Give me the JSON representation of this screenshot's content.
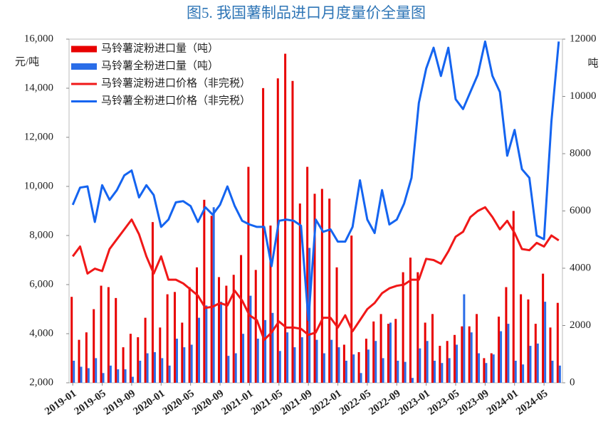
{
  "chart_data": {
    "type": "bar-line",
    "title": "图5. 我国薯制品进口月度量价全量图",
    "ylabel": "元/吨",
    "y2label": "吨",
    "categories": [
      "2019-01",
      null,
      null,
      null,
      "2019-05",
      null,
      null,
      null,
      "2019-09",
      null,
      null,
      null,
      "2020-01",
      null,
      null,
      null,
      "2020-05",
      null,
      null,
      null,
      "2020-09",
      null,
      null,
      null,
      "2021-01",
      null,
      null,
      null,
      "2021-05",
      null,
      null,
      null,
      "2021-09",
      null,
      null,
      null,
      "2022-01",
      null,
      null,
      null,
      "2022-05",
      null,
      null,
      null,
      "2022-09",
      null,
      null,
      null,
      "2023-01",
      null,
      null,
      null,
      "2023-05",
      null,
      null,
      null,
      "2023-09",
      null,
      null,
      null,
      "2024-01",
      null,
      null,
      null,
      "2024-05",
      null,
      null
    ],
    "series": [
      {
        "name": "马铃薯淀粉进口量（吨）",
        "type": "bar",
        "axis": "y2",
        "color": "#e80000",
        "values": [
          3000,
          1500,
          1760,
          2570,
          3390,
          3340,
          2960,
          1240,
          1710,
          1590,
          2270,
          5610,
          1930,
          3090,
          3170,
          2100,
          3340,
          4030,
          6390,
          5830,
          3690,
          3390,
          3770,
          4460,
          7540,
          3940,
          10290,
          5490,
          10630,
          11490,
          10540,
          6260,
          7540,
          6600,
          6770,
          6430,
          4030,
          1330,
          5140,
          1070,
          1540,
          2140,
          2400,
          2060,
          2230,
          3860,
          4370,
          3860,
          2100,
          2400,
          1290,
          1460,
          1670,
          1970,
          1970,
          2400,
          860,
          1030,
          2310,
          3340,
          6000,
          3090,
          2910,
          2060,
          3810,
          1930,
          2790
        ]
      },
      {
        "name": "马铃薯全粉进口量（吨）",
        "type": "bar",
        "axis": "y2",
        "color": "#2a6de8",
        "values": [
          770,
          560,
          510,
          860,
          340,
          600,
          470,
          470,
          210,
          770,
          1030,
          1070,
          860,
          600,
          1540,
          1240,
          1330,
          2270,
          2700,
          6130,
          2830,
          940,
          1030,
          1710,
          3040,
          1540,
          2190,
          2440,
          1110,
          1760,
          1240,
          1590,
          4710,
          1500,
          1030,
          1500,
          1240,
          770,
          990,
          340,
          1160,
          1460,
          860,
          2100,
          770,
          730,
          170,
          1200,
          1460,
          770,
          690,
          860,
          1330,
          3090,
          1760,
          1030,
          690,
          990,
          1800,
          2060,
          770,
          640,
          1290,
          1370,
          2830,
          770,
          600
        ]
      },
      {
        "name": "马铃薯淀粉进口价格（非完税）",
        "type": "line",
        "color": "#f01818",
        "values": [
          7150,
          7550,
          6450,
          6650,
          6550,
          7450,
          7850,
          8250,
          8650,
          8050,
          7150,
          6450,
          7150,
          6200,
          6200,
          6050,
          5800,
          5550,
          5050,
          5100,
          5250,
          5150,
          5750,
          5350,
          4750,
          4550,
          3750,
          4050,
          4500,
          4250,
          4250,
          4200,
          3950,
          4050,
          4650,
          4650,
          4250,
          4750,
          4100,
          4550,
          5000,
          5250,
          5650,
          5850,
          5950,
          6000,
          6200,
          6200,
          7050,
          7000,
          6850,
          7350,
          7950,
          8150,
          8750,
          9000,
          9150,
          8750,
          8250,
          8600,
          8100,
          7450,
          7400,
          7700,
          7550,
          8000,
          7800
        ]
      },
      {
        "name": "马铃薯全粉进口价格（非完税）",
        "type": "line",
        "color": "#1464f0",
        "values": [
          9250,
          9950,
          10000,
          8550,
          10050,
          9450,
          9850,
          10450,
          10650,
          9550,
          10050,
          9650,
          8350,
          8650,
          9350,
          9400,
          9200,
          8550,
          9150,
          8850,
          9250,
          10000,
          9200,
          8600,
          8450,
          8350,
          8350,
          6750,
          8600,
          8650,
          8600,
          8400,
          4550,
          8650,
          8150,
          8250,
          7750,
          7750,
          8350,
          10250,
          8650,
          8100,
          9850,
          8450,
          8650,
          9300,
          10350,
          13400,
          14800,
          15650,
          14500,
          15650,
          13550,
          13150,
          13850,
          14550,
          15900,
          14500,
          13850,
          11250,
          12300,
          10700,
          10350,
          8000,
          7850,
          12650,
          15900
        ]
      }
    ],
    "ylim": [
      2000,
      16000
    ],
    "yticks": [
      {
        "value": 2000,
        "label": "2,000"
      },
      {
        "value": 4000,
        "label": "4,000"
      },
      {
        "value": 6000,
        "label": "6,000"
      },
      {
        "value": 8000,
        "label": "8,000"
      },
      {
        "value": 10000,
        "label": "10,000"
      },
      {
        "value": 12000,
        "label": "12,000"
      },
      {
        "value": 14000,
        "label": "14,000"
      },
      {
        "value": 16000,
        "label": "16,000"
      }
    ],
    "y2lim": [
      0,
      12000
    ],
    "y2ticks": [
      0,
      2000,
      4000,
      6000,
      8000,
      10000,
      12000
    ],
    "legend": "upper-left",
    "grid": false
  }
}
